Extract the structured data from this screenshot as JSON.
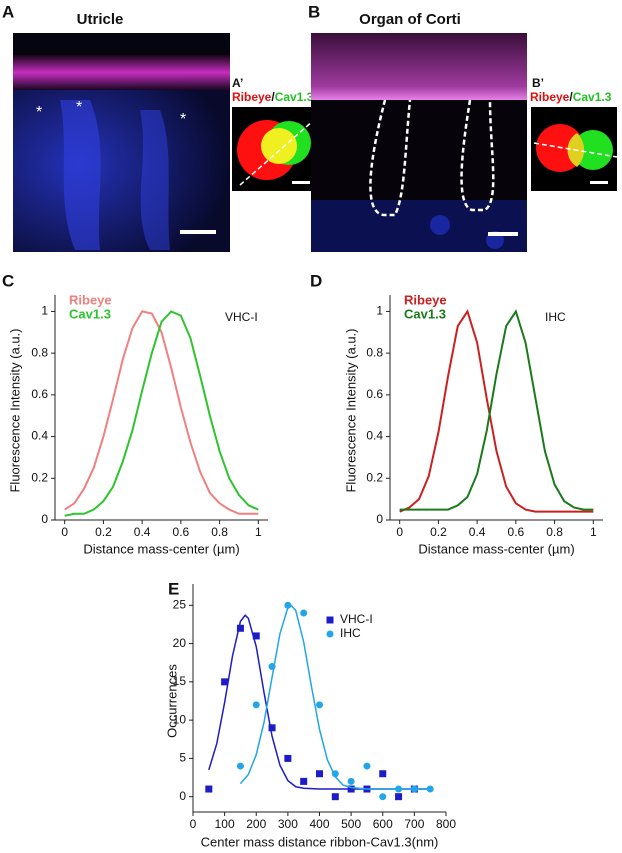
{
  "images": [
    {
      "letter": "A",
      "title": "Utricle",
      "inset_letter": "A’",
      "inset_label_1": "Ribeye",
      "separator": "/",
      "inset_label_2": "Cav1.3",
      "asterisks": [
        "*",
        "*",
        "*"
      ]
    },
    {
      "letter": "B",
      "title": "Organ of Corti",
      "inset_letter": "B’",
      "inset_label_1": "Ribeye",
      "separator": "/",
      "inset_label_2": "Cav1.3"
    }
  ],
  "chart_data": [
    {
      "type": "line",
      "letter": "C",
      "annotation": "VHC-I",
      "x_label": "Distance mass-center (µm)",
      "y_label": "Fluorescence Intensity (a.u.)",
      "x": [
        0,
        0.05,
        0.1,
        0.15,
        0.2,
        0.25,
        0.3,
        0.35,
        0.4,
        0.45,
        0.5,
        0.55,
        0.6,
        0.65,
        0.7,
        0.75,
        0.8,
        0.85,
        0.9,
        0.95,
        1
      ],
      "series": [
        {
          "name": "Ribeye",
          "color": "#f08080",
          "values": [
            0.05,
            0.08,
            0.15,
            0.25,
            0.4,
            0.58,
            0.77,
            0.92,
            1.0,
            0.99,
            0.9,
            0.73,
            0.54,
            0.37,
            0.23,
            0.13,
            0.08,
            0.05,
            0.03,
            0.03,
            0.03
          ]
        },
        {
          "name": "Cav1.3",
          "color": "#2ec42e",
          "values": [
            0.02,
            0.03,
            0.03,
            0.05,
            0.09,
            0.16,
            0.28,
            0.43,
            0.62,
            0.8,
            0.95,
            1.0,
            0.98,
            0.87,
            0.69,
            0.5,
            0.33,
            0.2,
            0.12,
            0.07,
            0.05
          ]
        }
      ],
      "xlim": [
        -0.05,
        1.05
      ],
      "xticks": [
        0,
        0.2,
        0.4,
        0.6,
        0.8,
        1
      ],
      "ylim": [
        0,
        1.05
      ],
      "yticks": [
        0,
        0.2,
        0.4,
        0.6,
        0.8,
        1
      ]
    },
    {
      "type": "line",
      "letter": "D",
      "annotation": "IHC",
      "x_label": "Distance mass-center (µm)",
      "y_label": "Fluorescence Intensity (a.u.)",
      "x": [
        0,
        0.05,
        0.1,
        0.15,
        0.2,
        0.25,
        0.3,
        0.35,
        0.4,
        0.45,
        0.5,
        0.55,
        0.6,
        0.65,
        0.7,
        0.75,
        0.8,
        0.85,
        0.9,
        0.95,
        1
      ],
      "series": [
        {
          "name": "Ribeye",
          "color": "#cc2020",
          "values": [
            0.04,
            0.06,
            0.1,
            0.21,
            0.42,
            0.69,
            0.93,
            1.0,
            0.85,
            0.58,
            0.33,
            0.16,
            0.08,
            0.05,
            0.04,
            0.04,
            0.04,
            0.04,
            0.04,
            0.04,
            0.04
          ]
        },
        {
          "name": "Cav1.3",
          "color": "#1a7a1a",
          "values": [
            0.05,
            0.05,
            0.05,
            0.05,
            0.05,
            0.05,
            0.07,
            0.11,
            0.22,
            0.43,
            0.7,
            0.93,
            1.0,
            0.85,
            0.59,
            0.33,
            0.17,
            0.09,
            0.06,
            0.05,
            0.05
          ]
        }
      ],
      "xlim": [
        -0.05,
        1.05
      ],
      "xticks": [
        0,
        0.2,
        0.4,
        0.6,
        0.8,
        1
      ],
      "ylim": [
        0,
        1.05
      ],
      "yticks": [
        0,
        0.2,
        0.4,
        0.6,
        0.8,
        1
      ]
    },
    {
      "type": "scatter",
      "letter": "E",
      "x_label": "Center mass distance ribbon-Cav1.3(nm)",
      "y_label": "Occurrences",
      "series": [
        {
          "name": "VHC-I",
          "color": "#1c1cc8",
          "marker": "square",
          "x": [
            50,
            100,
            150,
            200,
            250,
            300,
            350,
            400,
            450,
            500,
            550,
            600,
            650,
            700
          ],
          "values": [
            1,
            15,
            22,
            21,
            9,
            5,
            2,
            3,
            0,
            1,
            1,
            3,
            0,
            1
          ],
          "fit": {
            "x": [
              50,
              75,
              100,
              125,
              150,
              165,
              175,
              200,
              225,
              250,
              275,
              300,
              325,
              350,
              400,
              500,
              600,
              700,
              750
            ],
            "values": [
              3.5,
              6.9,
              12.3,
              18.4,
              22.9,
              23.7,
              23.3,
              19.6,
              13.5,
              7.9,
              4.1,
              2.1,
              1.3,
              1.1,
              1,
              1,
              1,
              1,
              1
            ]
          }
        },
        {
          "name": "IHC",
          "color": "#22a6e8",
          "marker": "circle",
          "x": [
            150,
            200,
            250,
            300,
            350,
            400,
            450,
            500,
            550,
            600,
            650,
            700,
            750
          ],
          "values": [
            4,
            12,
            17,
            25,
            24,
            12,
            3,
            2,
            4,
            0,
            1,
            1,
            1
          ],
          "fit": {
            "x": [
              150,
              175,
              200,
              225,
              250,
              275,
              300,
              310,
              325,
              350,
              375,
              400,
              425,
              450,
              475,
              500,
              550,
              600,
              700,
              750
            ],
            "values": [
              1.7,
              2.9,
              5.5,
              9.8,
              15.6,
              21.3,
              24.7,
              25,
              24.3,
              20.2,
              14.3,
              8.8,
              4.8,
              2.6,
              1.5,
              1.2,
              1,
              1,
              1,
              1
            ]
          }
        }
      ],
      "xlim": [
        0,
        800
      ],
      "xticks": [
        0,
        100,
        200,
        300,
        400,
        500,
        600,
        700,
        800
      ],
      "ylim": [
        -2,
        27
      ],
      "yticks": [
        0,
        5,
        10,
        15,
        20,
        25
      ]
    }
  ]
}
